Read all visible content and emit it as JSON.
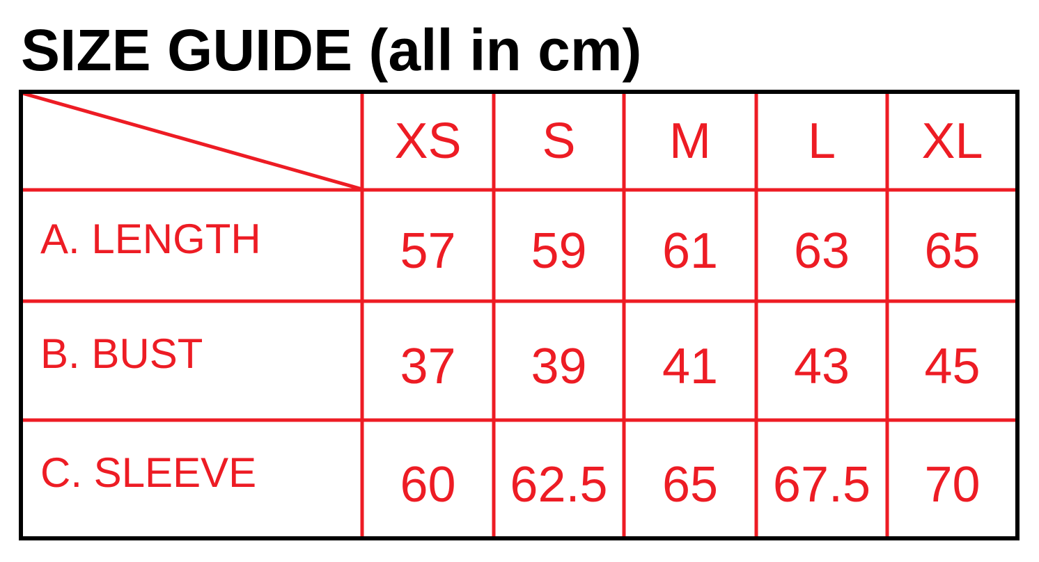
{
  "title": "SIZE GUIDE (all in cm)",
  "colors": {
    "accent": "#ed1c24",
    "border": "#000000"
  },
  "table": {
    "headers": [
      "XS",
      "S",
      "M",
      "L",
      "XL"
    ],
    "rows": [
      {
        "label": "A. LENGTH",
        "values": [
          "57",
          "59",
          "61",
          "63",
          "65"
        ]
      },
      {
        "label": "B. BUST",
        "values": [
          "37",
          "39",
          "41",
          "43",
          "45"
        ]
      },
      {
        "label": "C. SLEEVE",
        "values": [
          "60",
          "62.5",
          "65",
          "67.5",
          "70"
        ]
      }
    ]
  }
}
